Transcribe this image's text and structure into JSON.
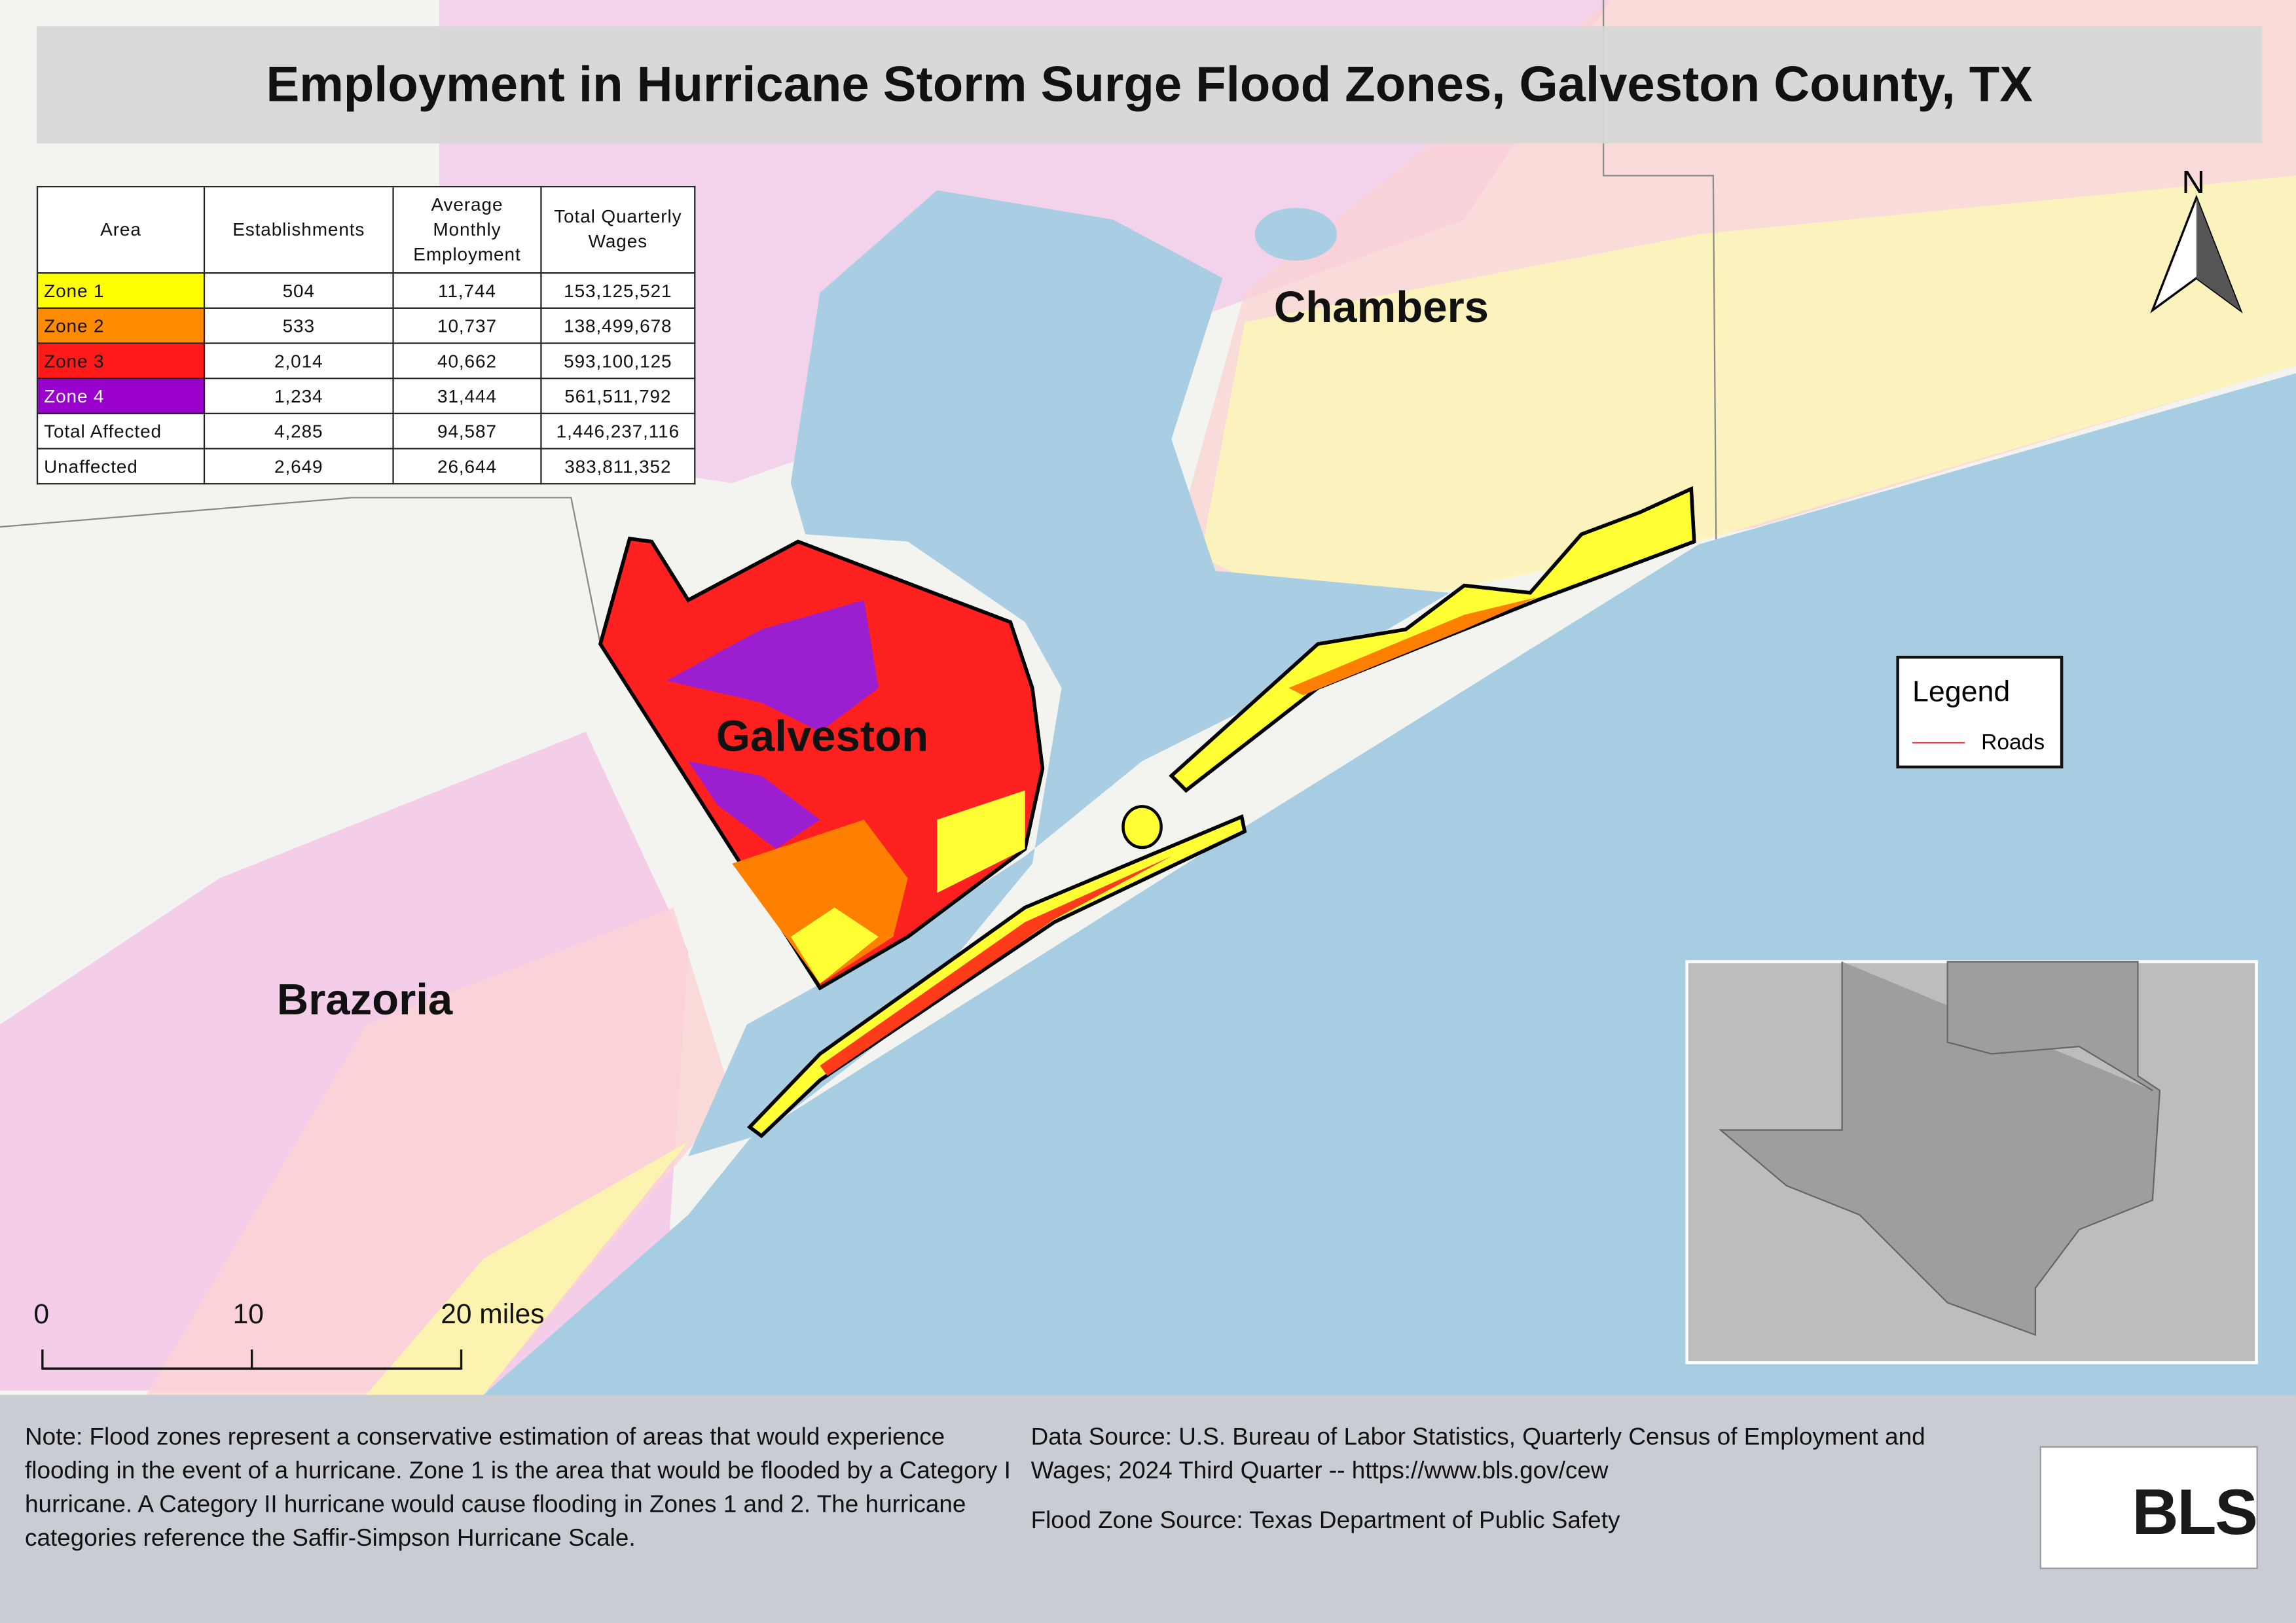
{
  "header": {
    "title": "Employment in Hurricane Storm Surge Flood Zones, Galveston County, TX"
  },
  "table": {
    "columns": [
      "Area",
      "Establishments",
      "Average Monthly Employment",
      "Total Quarterly Wages"
    ],
    "rows": [
      [
        "Zone 1",
        "504",
        "11,744",
        "153,125,521"
      ],
      [
        "Zone 2",
        "533",
        "10,737",
        "138,499,678"
      ],
      [
        "Zone 3",
        "2,014",
        "40,662",
        "593,100,125"
      ],
      [
        "Zone 4",
        "1,234",
        "31,444",
        "561,511,792"
      ],
      [
        "Total Affected",
        "4,285",
        "94,587",
        "1,446,237,116"
      ],
      [
        "Unaffected",
        "2,649",
        "26,644",
        "383,811,352"
      ]
    ]
  },
  "map_labels": [
    "Chambers",
    "Galveston",
    "Brazoria"
  ],
  "legend": {
    "title": "Legend",
    "items": [
      "Roads"
    ]
  },
  "north_arrow": "N",
  "scale_bar": [
    "0",
    "10",
    "20 miles"
  ],
  "notes": {
    "note": "Note: Flood zones represent a conservative estimation of areas that would experience flooding in the event of a hurricane. Zone 1 is the area that would be flooded by a Category I hurricane. A Category II hurricane would cause flooding in Zones 1 and 2. The hurricane categories reference the Saffir-Simpson Hurricane Scale.",
    "data_source": "Data Source: U.S. Bureau of Labor Statistics, Quarterly Census of Employment and Wages; 2024 Third Quarter -- https://www.bls.gov/cew",
    "flood_zone_source": "Flood Zone Source: Texas Department of Public Safety"
  },
  "logo": "BLS"
}
